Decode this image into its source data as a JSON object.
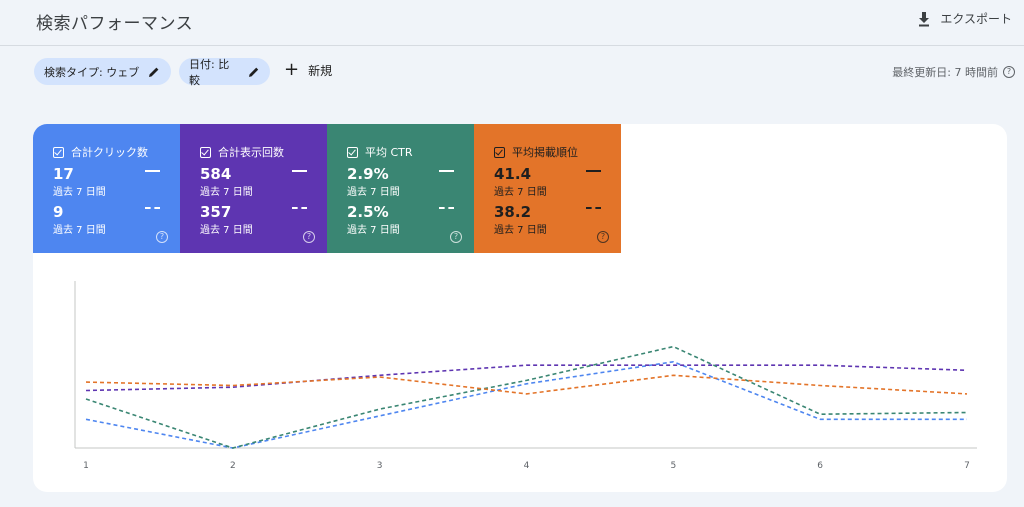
{
  "header": {
    "title": "検索パフォーマンス",
    "export_label": "エクスポート",
    "export_icon": "download-icon"
  },
  "filters": {
    "search_type": "検索タイプ: ウェブ",
    "date": "日付: 比較",
    "edit_icon": "pencil-icon",
    "new_label": "新規",
    "last_updated": "最終更新日: 7 時間前"
  },
  "metrics": [
    {
      "name": "合計クリック数",
      "value_current": "17",
      "period_current": "過去 7 日間",
      "value_previous": "9",
      "period_previous": "過去 7 日間",
      "color": "#4e86f0",
      "selected": true
    },
    {
      "name": "合計表示回数",
      "value_current": "584",
      "period_current": "過去 7 日間",
      "value_previous": "357",
      "period_previous": "過去 7 日間",
      "color": "#5e35b1",
      "selected": true
    },
    {
      "name": "平均 CTR",
      "value_current": "2.9%",
      "period_current": "過去 7 日間",
      "value_previous": "2.5%",
      "period_previous": "過去 7 日間",
      "color": "#3a8673",
      "selected": true
    },
    {
      "name": "平均掲載順位",
      "value_current": "41.4",
      "period_current": "過去 7 日間",
      "value_previous": "38.2",
      "period_previous": "過去 7 日間",
      "color": "#e37429",
      "selected": true
    }
  ],
  "chart_data": {
    "type": "line",
    "x": [
      "1",
      "2",
      "3",
      "4",
      "5",
      "6",
      "7"
    ],
    "ylim": [
      0,
      100
    ],
    "grid": false,
    "y_axis_labels_shown": false,
    "line_style": "dashed",
    "series": [
      {
        "metric": "clicks",
        "color": "#4e86f0",
        "values": [
          17,
          0,
          19,
          38,
          51,
          17,
          17
        ]
      },
      {
        "metric": "impressions",
        "color": "#5e35b1",
        "values": [
          34,
          36,
          43,
          49,
          49,
          49,
          46
        ]
      },
      {
        "metric": "ctr",
        "color": "#3a8673",
        "values": [
          29,
          0,
          23,
          40,
          60,
          20,
          21
        ]
      },
      {
        "metric": "position",
        "color": "#e37429",
        "values": [
          39,
          37,
          42,
          32,
          43,
          37,
          32
        ]
      }
    ]
  }
}
